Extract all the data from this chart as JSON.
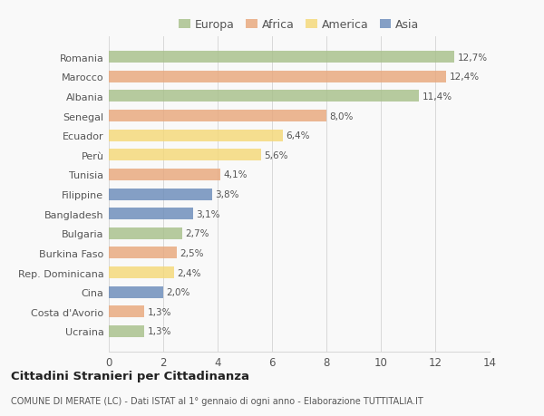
{
  "countries": [
    "Romania",
    "Marocco",
    "Albania",
    "Senegal",
    "Ecuador",
    "Perù",
    "Tunisia",
    "Filippine",
    "Bangladesh",
    "Bulgaria",
    "Burkina Faso",
    "Rep. Dominicana",
    "Cina",
    "Costa d'Avorio",
    "Ucraina"
  ],
  "values": [
    12.7,
    12.4,
    11.4,
    8.0,
    6.4,
    5.6,
    4.1,
    3.8,
    3.1,
    2.7,
    2.5,
    2.4,
    2.0,
    1.3,
    1.3
  ],
  "labels": [
    "12,7%",
    "12,4%",
    "11,4%",
    "8,0%",
    "6,4%",
    "5,6%",
    "4,1%",
    "3,8%",
    "3,1%",
    "2,7%",
    "2,5%",
    "2,4%",
    "2,0%",
    "1,3%",
    "1,3%"
  ],
  "continents": [
    "Europa",
    "Africa",
    "Europa",
    "Africa",
    "America",
    "America",
    "Africa",
    "Asia",
    "Asia",
    "Europa",
    "Africa",
    "America",
    "Asia",
    "Africa",
    "Europa"
  ],
  "colors": {
    "Europa": "#a8c08a",
    "Africa": "#e8a87c",
    "America": "#f5d878",
    "Asia": "#6b8cba"
  },
  "legend_order": [
    "Europa",
    "Africa",
    "America",
    "Asia"
  ],
  "xlim": [
    0,
    14
  ],
  "xticks": [
    0,
    2,
    4,
    6,
    8,
    10,
    12,
    14
  ],
  "title": "Cittadini Stranieri per Cittadinanza",
  "subtitle": "COMUNE DI MERATE (LC) - Dati ISTAT al 1° gennaio di ogni anno - Elaborazione TUTTITALIA.IT",
  "background_color": "#f9f9f9",
  "grid_color": "#d8d8d8"
}
